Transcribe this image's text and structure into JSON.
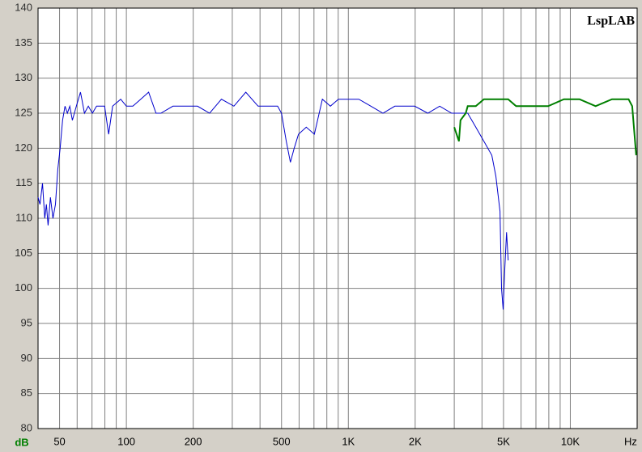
{
  "chart_data": {
    "type": "line",
    "watermark": "LspLAB",
    "x_label": "Hz",
    "y_label": "dB",
    "log_x": true,
    "grid": true,
    "xlim": [
      40,
      20000
    ],
    "ylim": [
      80,
      140
    ],
    "xticks": [
      50,
      100,
      200,
      500,
      {
        "value": 1000,
        "label": "1K"
      },
      {
        "value": 2000,
        "label": "2K"
      },
      {
        "value": 5000,
        "label": "5K"
      },
      {
        "value": 10000,
        "label": "10K"
      }
    ],
    "x_grid": [
      40,
      60,
      70,
      80,
      90,
      300,
      400,
      600,
      700,
      800,
      900,
      3000,
      4000,
      6000,
      7000,
      8000,
      9000
    ],
    "yticks": [
      80,
      85,
      90,
      95,
      100,
      105,
      110,
      115,
      120,
      125,
      130,
      135,
      140
    ],
    "series": [
      {
        "color": "#0000cc",
        "x": [
          40,
          40.8,
          41.9,
          42.9,
          43.6,
          44.4,
          45.5,
          46.7,
          47.9,
          49.1,
          50.3,
          51.6,
          52.9,
          54.2,
          55.6,
          57.1,
          59.5,
          62.1,
          63,
          64.7,
          67.4,
          70.3,
          73.4,
          76.5,
          79.8,
          83.2,
          86.7,
          94.3,
          100,
          106.9,
          116,
          126,
          136,
          143,
          162,
          184,
          209,
          237,
          268,
          305,
          345,
          392,
          444,
          480,
          500,
          525,
          548,
          570,
          596,
          646,
          703,
          764,
          830,
          902,
          1000,
          1115,
          1263,
          1431,
          1620,
          1840,
          1990,
          2280,
          2580,
          2920,
          3180,
          3450,
          3750,
          4080,
          4430,
          4620,
          4820,
          4900,
          4980,
          5070,
          5160,
          5250
        ],
        "values": [
          113,
          112,
          115,
          110,
          112,
          109,
          113,
          110,
          112,
          117,
          120,
          124,
          126,
          125,
          126,
          124,
          126,
          128,
          127,
          125,
          126,
          125,
          126,
          126,
          126,
          122,
          126,
          127,
          126,
          126,
          127,
          128,
          125,
          125,
          126,
          126,
          126,
          125,
          127,
          126,
          128,
          126,
          126,
          126,
          125,
          121,
          118,
          120,
          122,
          123,
          122,
          127,
          126,
          127,
          127,
          127,
          126,
          125,
          126,
          126,
          126,
          125,
          126,
          125,
          125,
          125,
          123,
          121,
          119,
          116,
          111,
          100,
          97,
          103,
          108,
          104
        ]
      },
      {
        "color": "#007f00",
        "x": [
          3000,
          3150,
          3200,
          3380,
          3450,
          3750,
          4080,
          4430,
          4820,
          5250,
          5700,
          6760,
          7950,
          9350,
          11000,
          13000,
          15400,
          18300,
          19000,
          19800
        ],
        "values": [
          123,
          121,
          124,
          125,
          126,
          126,
          127,
          127,
          127,
          127,
          126,
          126,
          126,
          127,
          127,
          126,
          127,
          127,
          126,
          119
        ]
      }
    ]
  }
}
